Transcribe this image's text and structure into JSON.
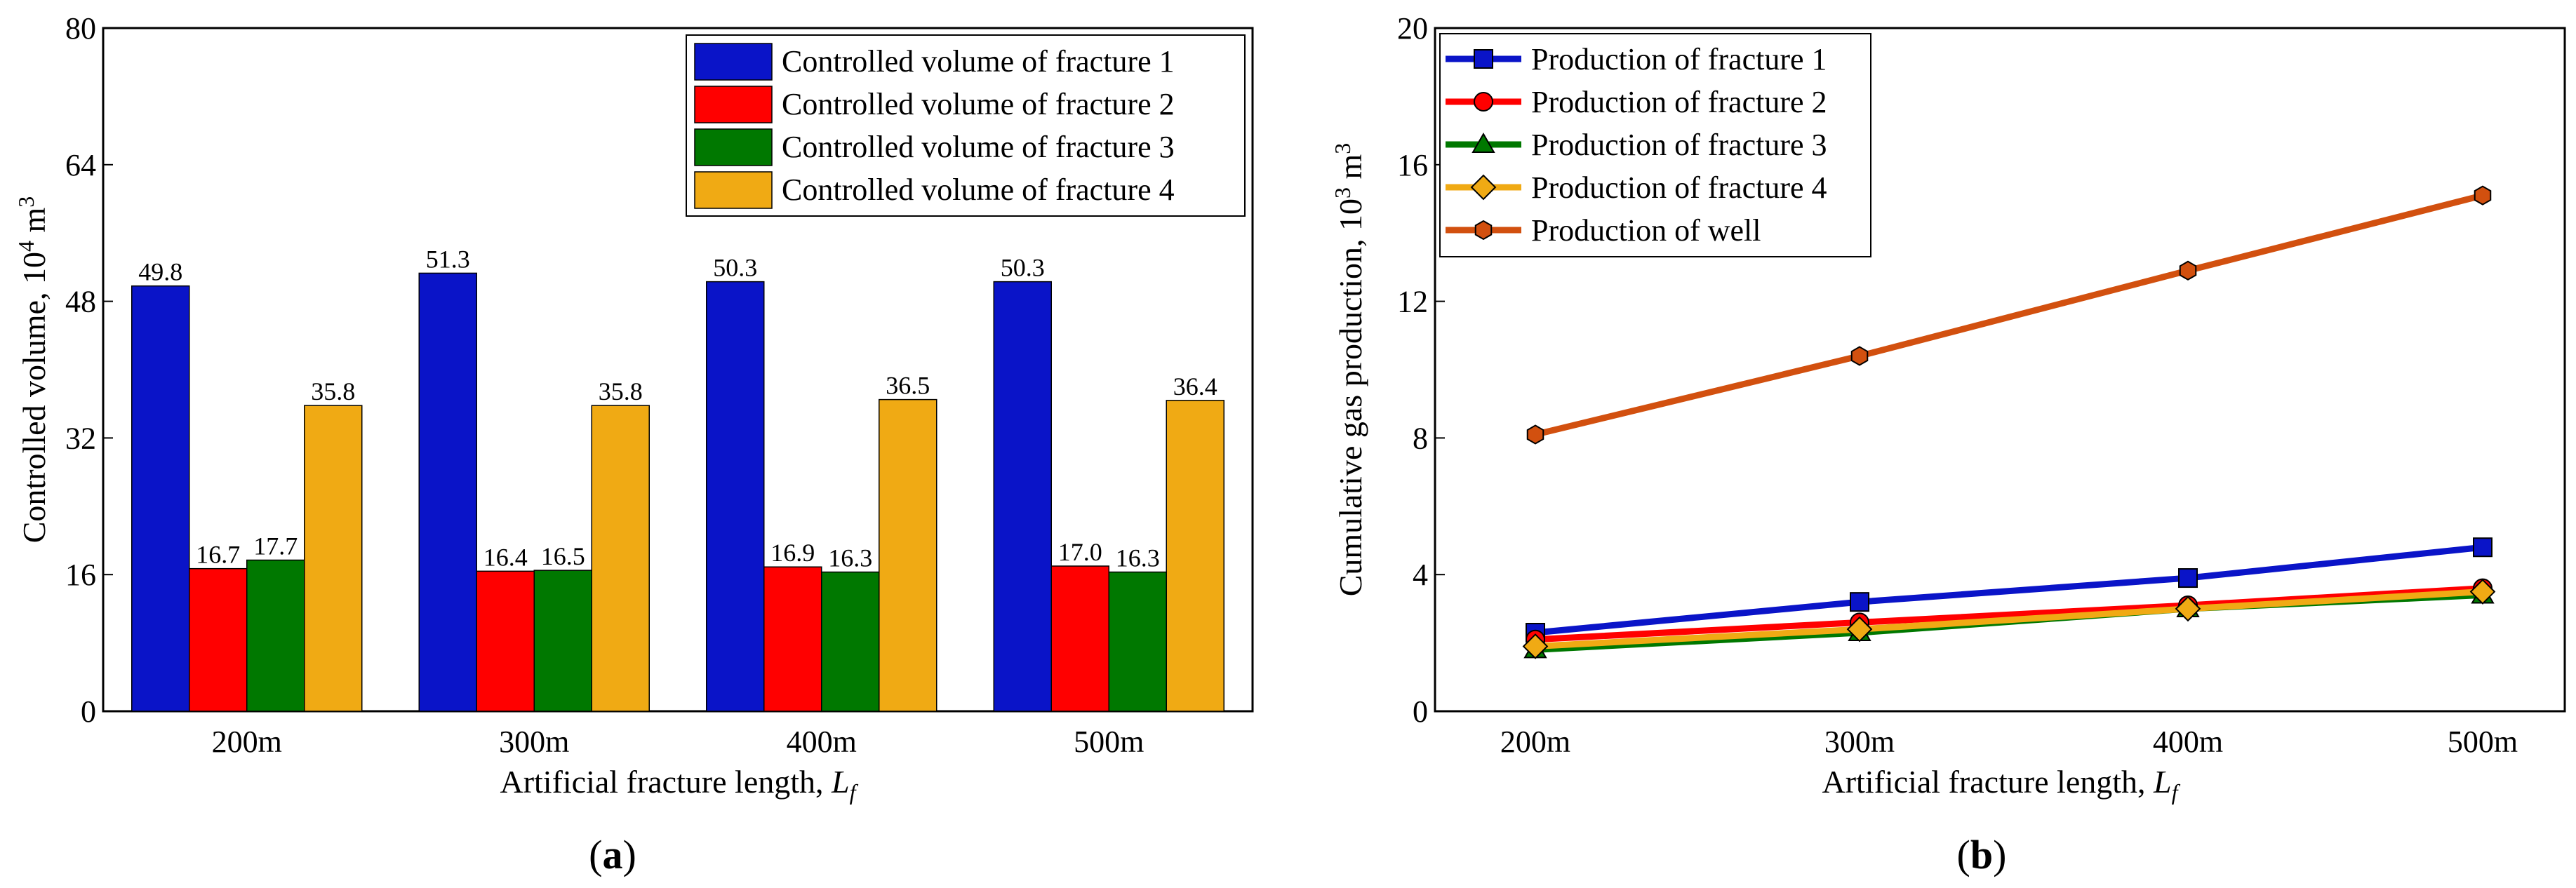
{
  "chart_data": [
    {
      "type": "bar",
      "categories": [
        "200m",
        "300m",
        "400m",
        "500m"
      ],
      "series": [
        {
          "name": "Controlled volume of fracture 1",
          "color": "#0a14c8",
          "values": [
            49.8,
            51.3,
            50.3,
            50.3
          ]
        },
        {
          "name": "Controlled volume of fracture 2",
          "color": "#ff0000",
          "values": [
            16.7,
            16.4,
            16.9,
            17.0
          ]
        },
        {
          "name": "Controlled volume of fracture 3",
          "color": "#007800",
          "values": [
            17.7,
            16.5,
            16.3,
            16.3
          ]
        },
        {
          "name": "Controlled volume of fracture 4",
          "color": "#f0aa14",
          "values": [
            35.8,
            35.8,
            36.5,
            36.4
          ]
        }
      ],
      "data_labels": [
        [
          "49.8",
          "51.3",
          "50.3",
          "50.3"
        ],
        [
          "16.7",
          "16.4",
          "16.9",
          "17.0"
        ],
        [
          "17.7",
          "16.5",
          "16.3",
          "16.3"
        ],
        [
          "35.8",
          "35.8",
          "36.5",
          "36.4"
        ]
      ],
      "xlabel": "Artificial fracture length, ",
      "xlabel_var": "L",
      "xlabel_sub": "f",
      "ylabel": "Controlled volume, 10",
      "ylabel_sup": "4",
      "ylabel_unit": " m",
      "ylabel_unit_sup": "3",
      "ylim": [
        0,
        80
      ],
      "yticks": [
        "0",
        "16",
        "32",
        "48",
        "64",
        "80"
      ],
      "legend_position": "top-right",
      "caption": "a",
      "grid": false
    },
    {
      "type": "line",
      "categories": [
        "200m",
        "300m",
        "400m",
        "500m"
      ],
      "series": [
        {
          "name": "Production of fracture 1",
          "color": "#0a14c8",
          "marker": "square",
          "values": [
            2.3,
            3.2,
            3.9,
            4.8
          ]
        },
        {
          "name": "Production of fracture 2",
          "color": "#ff0000",
          "marker": "circle",
          "values": [
            2.1,
            2.6,
            3.1,
            3.6
          ]
        },
        {
          "name": "Production of fracture 3",
          "color": "#007800",
          "marker": "triangle",
          "values": [
            1.8,
            2.3,
            3.0,
            3.4
          ]
        },
        {
          "name": "Production of fracture 4",
          "color": "#f0aa14",
          "marker": "diamond",
          "values": [
            1.9,
            2.4,
            3.0,
            3.5
          ]
        },
        {
          "name": "Production of well",
          "color": "#d2500f",
          "marker": "hexagon",
          "values": [
            8.1,
            10.4,
            12.9,
            15.1
          ]
        }
      ],
      "xlabel": "Artificial fracture length, ",
      "xlabel_var": "L",
      "xlabel_sub": "f",
      "ylabel": "Cumulative gas production, 10",
      "ylabel_sup": "3",
      "ylabel_unit": " m",
      "ylabel_unit_sup": "3",
      "ylim": [
        0,
        20
      ],
      "yticks": [
        "0",
        "4",
        "8",
        "12",
        "16",
        "20"
      ],
      "legend_position": "top-left",
      "caption": "b",
      "grid": false
    }
  ]
}
